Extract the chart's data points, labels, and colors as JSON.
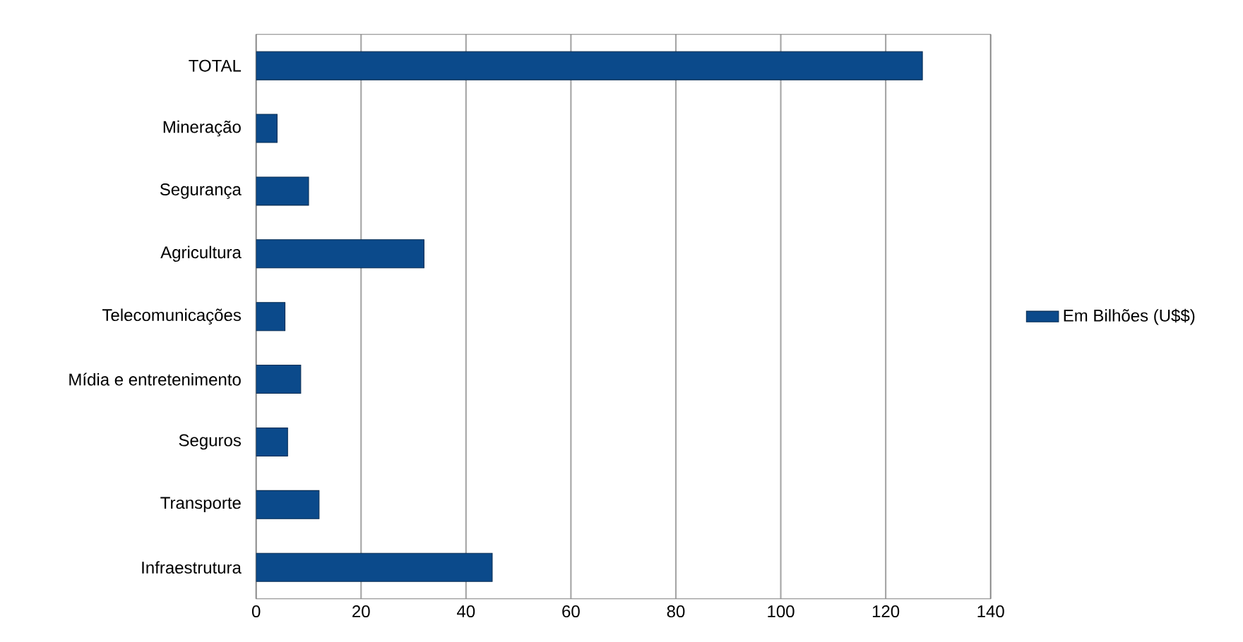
{
  "chart_data": {
    "type": "bar",
    "orientation": "horizontal",
    "categories": [
      "TOTAL",
      "Mineração",
      "Segurança",
      "Agricultura",
      "Telecomunicações",
      "Mídia e entretenimento",
      "Seguros",
      "Transporte",
      "Infraestrutura"
    ],
    "series": [
      {
        "name": "Em Bilhões (U$$)",
        "color": "#0b4a8b",
        "values": [
          127,
          4,
          10,
          32,
          5.5,
          8.5,
          6,
          12,
          45
        ]
      }
    ],
    "xlim": [
      0,
      140
    ],
    "xticks": [
      0,
      20,
      40,
      60,
      80,
      100,
      120,
      140
    ],
    "grid": "x",
    "legend": "right"
  }
}
